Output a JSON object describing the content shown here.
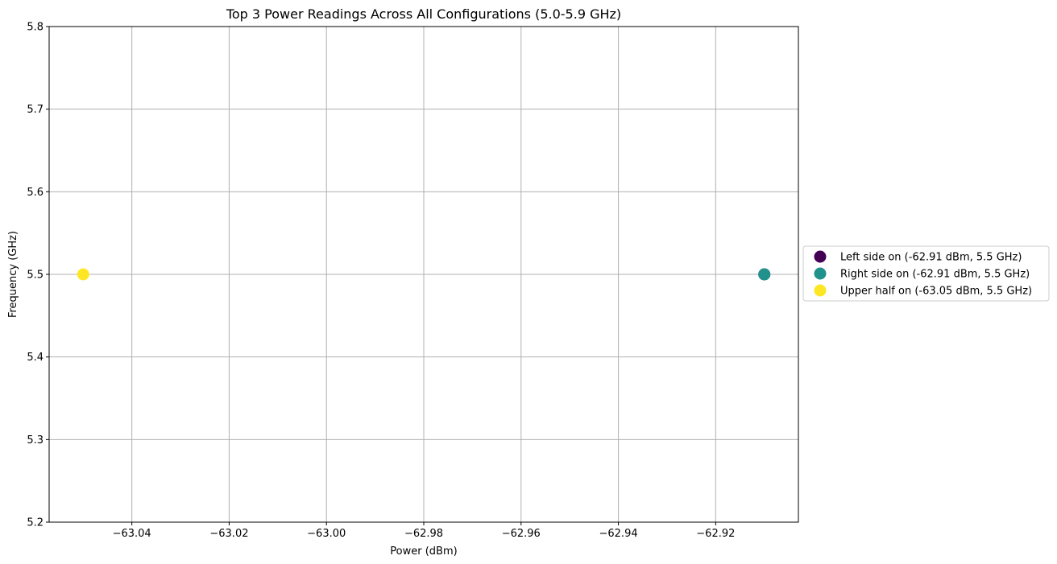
{
  "chart_data": {
    "type": "scatter",
    "title": "Top 3 Power Readings Across All Configurations (5.0-5.9 GHz)",
    "xlabel": "Power (dBm)",
    "ylabel": "Frequency (GHz)",
    "xlim": [
      -63.057,
      -62.903
    ],
    "ylim": [
      5.2,
      5.8
    ],
    "xticks": [
      -63.04,
      -63.02,
      -63.0,
      -62.98,
      -62.96,
      -62.94,
      -62.92
    ],
    "xtick_labels": [
      "−63.04",
      "−63.02",
      "−63.00",
      "−62.98",
      "−62.96",
      "−62.94",
      "−62.92"
    ],
    "yticks": [
      5.2,
      5.3,
      5.4,
      5.5,
      5.6,
      5.7,
      5.8
    ],
    "ytick_labels": [
      "5.2",
      "5.3",
      "5.4",
      "5.5",
      "5.6",
      "5.7",
      "5.8"
    ],
    "grid": true,
    "legend_position": "outside-right",
    "series": [
      {
        "name": "Left side on (-62.91 dBm, 5.5 GHz)",
        "color": "#440154",
        "x": [
          -62.91
        ],
        "y": [
          5.5
        ]
      },
      {
        "name": "Right side on (-62.91 dBm, 5.5 GHz)",
        "color": "#21918c",
        "x": [
          -62.91
        ],
        "y": [
          5.5
        ]
      },
      {
        "name": "Upper half on (-63.05 dBm, 5.5 GHz)",
        "color": "#fde725",
        "x": [
          -63.05
        ],
        "y": [
          5.5
        ]
      }
    ]
  }
}
